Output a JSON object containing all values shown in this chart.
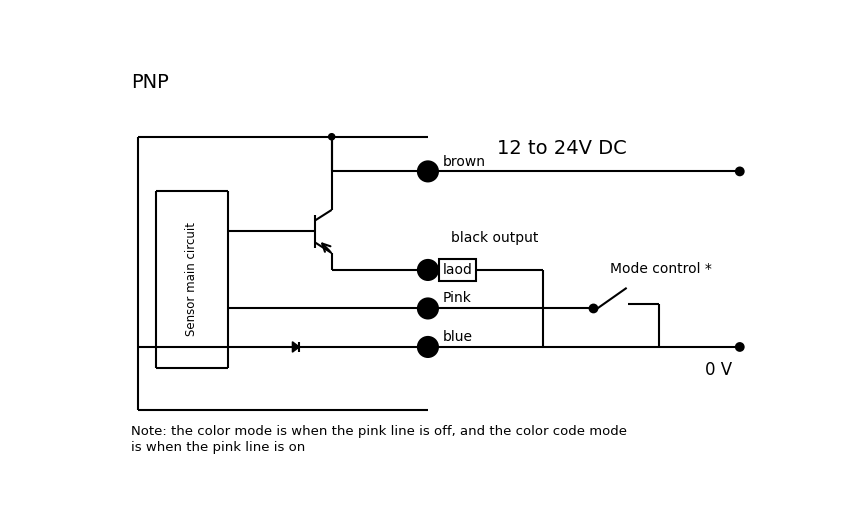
{
  "title": "PNP",
  "note": "Note: the color mode is when the pink line is off, and the color code mode\nis when the pink line is on",
  "bg_color": "#ffffff",
  "line_color": "#000000",
  "text_color": "#000000",
  "sensor_box_label": "Sensor main circuit",
  "pin1_label": "brown",
  "pin2_label": "Pink",
  "pin3_label": "blue",
  "pin4_label": "laod",
  "voltage_label": "12 to 24V DC",
  "gnd_label": "0 V",
  "black_output_label": "black output",
  "mode_control_label": "Mode control *"
}
